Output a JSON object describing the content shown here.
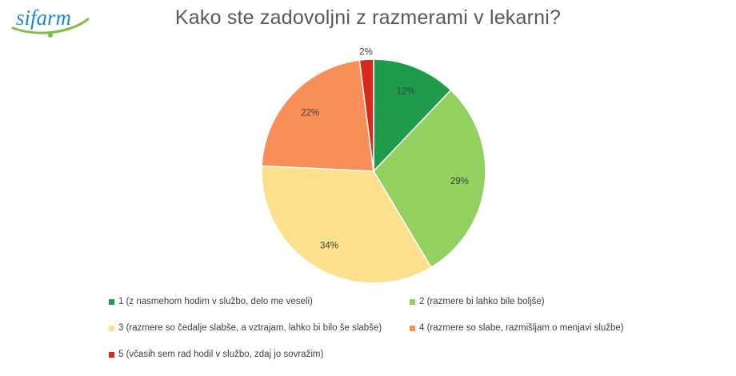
{
  "logo": {
    "text": "sifarm"
  },
  "chart_data": {
    "type": "pie",
    "title": "Kako ste zadovoljni z razmerami v lekarni?",
    "slices": [
      {
        "label": "1 (z nasmehom hodim v službo, delo me veseli)",
        "value": 12,
        "display": "12%",
        "color": "#1e9b4b"
      },
      {
        "label": "2 (razmere bi lahko bile boljše)",
        "value": 29,
        "display": "29%",
        "color": "#92d060"
      },
      {
        "label": "3 (razmere so čedalje slabše, a vztrajam, lahko bi bilo še slabše)",
        "value": 34,
        "display": "34%",
        "color": "#fde08c"
      },
      {
        "label": "4 (razmere so slabe, razmišljam o menjavi službe)",
        "value": 22,
        "display": "22%",
        "color": "#f88e58"
      },
      {
        "label": "5 (včasih sem rad hodil v službo, zdaj jo sovražim)",
        "value": 2,
        "display": "2%",
        "color": "#d8291c"
      }
    ],
    "legend_position": "bottom"
  }
}
